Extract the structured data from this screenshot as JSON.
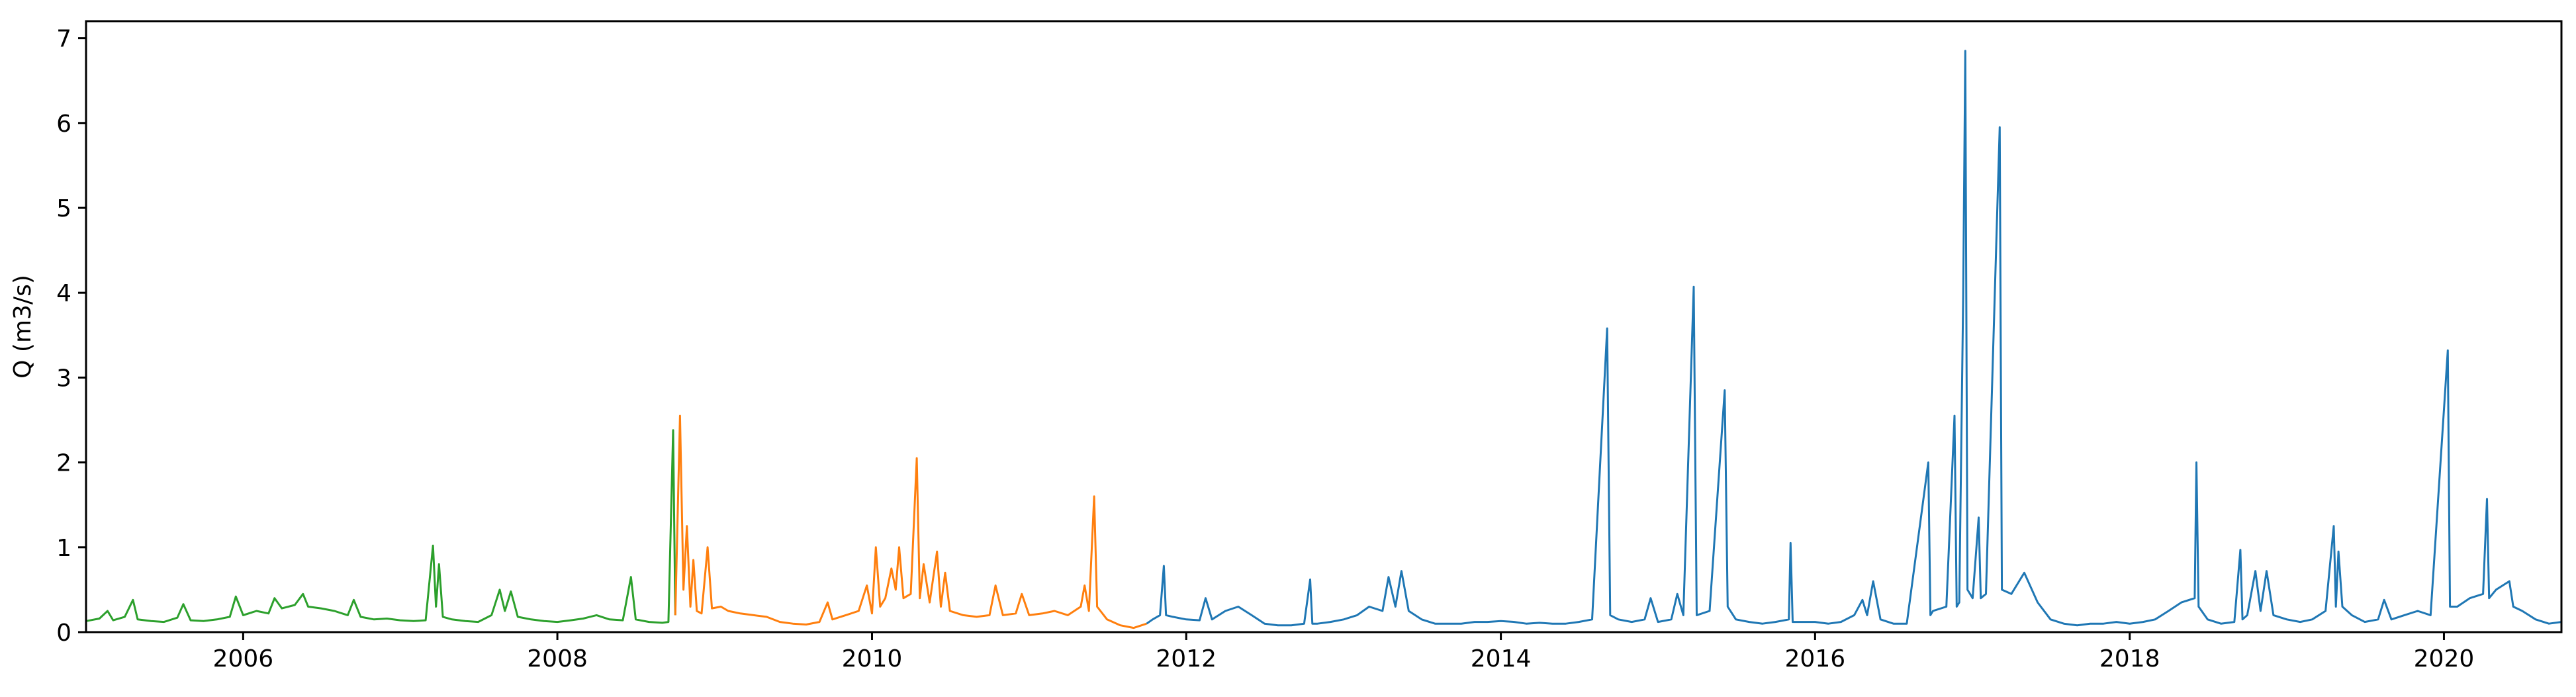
{
  "chart_data": {
    "type": "line",
    "title": "",
    "xlabel": "",
    "ylabel": "Q (m3/s)",
    "x_axis_kind": "date",
    "xlim": [
      "2005-01-01",
      "2020-09-30"
    ],
    "ylim": [
      0,
      7.2
    ],
    "x_ticks": [
      "2006-01-01",
      "2008-01-01",
      "2010-01-01",
      "2012-01-01",
      "2014-01-01",
      "2016-01-01",
      "2018-01-01",
      "2020-01-01"
    ],
    "x_tick_labels": [
      "2006",
      "2008",
      "2010",
      "2012",
      "2014",
      "2016",
      "2018",
      "2020"
    ],
    "y_ticks": [
      0,
      1,
      2,
      3,
      4,
      5,
      6,
      7
    ],
    "y_tick_labels": [
      "0",
      "1",
      "2",
      "3",
      "4",
      "5",
      "6",
      "7"
    ],
    "grid": false,
    "legend": "none",
    "series": [
      {
        "color": "#2ca02c",
        "points": [
          [
            "2005-01-01",
            0.13
          ],
          [
            "2005-02-01",
            0.16
          ],
          [
            "2005-02-20",
            0.25
          ],
          [
            "2005-03-05",
            0.14
          ],
          [
            "2005-04-01",
            0.18
          ],
          [
            "2005-04-20",
            0.38
          ],
          [
            "2005-05-01",
            0.15
          ],
          [
            "2005-06-01",
            0.13
          ],
          [
            "2005-07-01",
            0.12
          ],
          [
            "2005-08-01",
            0.17
          ],
          [
            "2005-08-15",
            0.33
          ],
          [
            "2005-09-01",
            0.14
          ],
          [
            "2005-10-01",
            0.13
          ],
          [
            "2005-11-01",
            0.15
          ],
          [
            "2005-12-01",
            0.18
          ],
          [
            "2005-12-15",
            0.42
          ],
          [
            "2006-01-01",
            0.2
          ],
          [
            "2006-02-01",
            0.25
          ],
          [
            "2006-03-01",
            0.22
          ],
          [
            "2006-03-15",
            0.4
          ],
          [
            "2006-04-01",
            0.28
          ],
          [
            "2006-05-01",
            0.32
          ],
          [
            "2006-05-20",
            0.45
          ],
          [
            "2006-06-01",
            0.3
          ],
          [
            "2006-07-01",
            0.28
          ],
          [
            "2006-08-01",
            0.25
          ],
          [
            "2006-09-01",
            0.2
          ],
          [
            "2006-09-15",
            0.38
          ],
          [
            "2006-10-01",
            0.18
          ],
          [
            "2006-11-01",
            0.15
          ],
          [
            "2006-12-01",
            0.16
          ],
          [
            "2007-01-01",
            0.14
          ],
          [
            "2007-02-01",
            0.13
          ],
          [
            "2007-03-01",
            0.14
          ],
          [
            "2007-03-18",
            1.02
          ],
          [
            "2007-03-25",
            0.3
          ],
          [
            "2007-04-01",
            0.8
          ],
          [
            "2007-04-10",
            0.18
          ],
          [
            "2007-05-01",
            0.15
          ],
          [
            "2007-06-01",
            0.13
          ],
          [
            "2007-07-01",
            0.12
          ],
          [
            "2007-08-01",
            0.2
          ],
          [
            "2007-08-20",
            0.5
          ],
          [
            "2007-09-01",
            0.25
          ],
          [
            "2007-09-15",
            0.48
          ],
          [
            "2007-10-01",
            0.18
          ],
          [
            "2007-11-01",
            0.15
          ],
          [
            "2007-12-01",
            0.13
          ],
          [
            "2008-01-01",
            0.12
          ],
          [
            "2008-02-01",
            0.14
          ],
          [
            "2008-03-01",
            0.16
          ],
          [
            "2008-04-01",
            0.2
          ],
          [
            "2008-05-01",
            0.15
          ],
          [
            "2008-06-01",
            0.14
          ],
          [
            "2008-06-20",
            0.65
          ],
          [
            "2008-07-01",
            0.15
          ],
          [
            "2008-08-01",
            0.12
          ],
          [
            "2008-09-01",
            0.11
          ],
          [
            "2008-09-15",
            0.12
          ],
          [
            "2008-09-26",
            2.38
          ],
          [
            "2008-10-01",
            0.2
          ]
        ]
      },
      {
        "color": "#ff7f0e",
        "points": [
          [
            "2008-10-01",
            0.2
          ],
          [
            "2008-10-12",
            2.55
          ],
          [
            "2008-10-20",
            0.5
          ],
          [
            "2008-10-28",
            1.25
          ],
          [
            "2008-11-05",
            0.3
          ],
          [
            "2008-11-12",
            0.85
          ],
          [
            "2008-11-20",
            0.25
          ],
          [
            "2008-12-01",
            0.22
          ],
          [
            "2008-12-15",
            1.0
          ],
          [
            "2008-12-25",
            0.28
          ],
          [
            "2009-01-15",
            0.3
          ],
          [
            "2009-02-01",
            0.25
          ],
          [
            "2009-03-01",
            0.22
          ],
          [
            "2009-04-01",
            0.2
          ],
          [
            "2009-05-01",
            0.18
          ],
          [
            "2009-06-01",
            0.12
          ],
          [
            "2009-07-01",
            0.1
          ],
          [
            "2009-08-01",
            0.09
          ],
          [
            "2009-09-01",
            0.12
          ],
          [
            "2009-09-20",
            0.35
          ],
          [
            "2009-10-01",
            0.15
          ],
          [
            "2009-11-01",
            0.2
          ],
          [
            "2009-12-01",
            0.25
          ],
          [
            "2009-12-20",
            0.55
          ],
          [
            "2010-01-01",
            0.22
          ],
          [
            "2010-01-10",
            1.0
          ],
          [
            "2010-01-20",
            0.3
          ],
          [
            "2010-02-01",
            0.4
          ],
          [
            "2010-02-15",
            0.75
          ],
          [
            "2010-02-25",
            0.5
          ],
          [
            "2010-03-05",
            1.0
          ],
          [
            "2010-03-15",
            0.4
          ],
          [
            "2010-04-01",
            0.45
          ],
          [
            "2010-04-15",
            2.05
          ],
          [
            "2010-04-22",
            0.4
          ],
          [
            "2010-05-01",
            0.8
          ],
          [
            "2010-05-15",
            0.35
          ],
          [
            "2010-06-01",
            0.95
          ],
          [
            "2010-06-10",
            0.3
          ],
          [
            "2010-06-20",
            0.7
          ],
          [
            "2010-07-01",
            0.25
          ],
          [
            "2010-08-01",
            0.2
          ],
          [
            "2010-09-01",
            0.18
          ],
          [
            "2010-10-01",
            0.2
          ],
          [
            "2010-10-15",
            0.55
          ],
          [
            "2010-11-01",
            0.2
          ],
          [
            "2010-12-01",
            0.22
          ],
          [
            "2010-12-15",
            0.45
          ],
          [
            "2011-01-01",
            0.2
          ],
          [
            "2011-02-01",
            0.22
          ],
          [
            "2011-03-01",
            0.25
          ],
          [
            "2011-04-01",
            0.2
          ],
          [
            "2011-05-01",
            0.3
          ],
          [
            "2011-05-10",
            0.55
          ],
          [
            "2011-05-20",
            0.25
          ],
          [
            "2011-06-01",
            1.6
          ],
          [
            "2011-06-08",
            0.3
          ],
          [
            "2011-07-01",
            0.15
          ],
          [
            "2011-08-01",
            0.08
          ],
          [
            "2011-09-01",
            0.05
          ],
          [
            "2011-10-01",
            0.1
          ]
        ]
      },
      {
        "color": "#1f77b4",
        "points": [
          [
            "2011-10-01",
            0.1
          ],
          [
            "2011-10-15",
            0.15
          ],
          [
            "2011-11-01",
            0.2
          ],
          [
            "2011-11-10",
            0.78
          ],
          [
            "2011-11-15",
            0.2
          ],
          [
            "2011-12-01",
            0.18
          ],
          [
            "2012-01-01",
            0.15
          ],
          [
            "2012-02-01",
            0.14
          ],
          [
            "2012-02-15",
            0.4
          ],
          [
            "2012-03-01",
            0.15
          ],
          [
            "2012-04-01",
            0.25
          ],
          [
            "2012-05-01",
            0.3
          ],
          [
            "2012-06-01",
            0.2
          ],
          [
            "2012-07-01",
            0.1
          ],
          [
            "2012-08-01",
            0.08
          ],
          [
            "2012-09-01",
            0.08
          ],
          [
            "2012-10-01",
            0.1
          ],
          [
            "2012-10-15",
            0.62
          ],
          [
            "2012-10-20",
            0.1
          ],
          [
            "2012-11-01",
            0.1
          ],
          [
            "2012-12-01",
            0.12
          ],
          [
            "2013-01-01",
            0.15
          ],
          [
            "2013-02-01",
            0.2
          ],
          [
            "2013-03-01",
            0.3
          ],
          [
            "2013-04-01",
            0.25
          ],
          [
            "2013-04-15",
            0.65
          ],
          [
            "2013-05-01",
            0.3
          ],
          [
            "2013-05-15",
            0.72
          ],
          [
            "2013-06-01",
            0.25
          ],
          [
            "2013-07-01",
            0.15
          ],
          [
            "2013-08-01",
            0.1
          ],
          [
            "2013-09-01",
            0.1
          ],
          [
            "2013-10-01",
            0.1
          ],
          [
            "2013-11-01",
            0.12
          ],
          [
            "2013-12-01",
            0.12
          ],
          [
            "2014-01-01",
            0.13
          ],
          [
            "2014-02-01",
            0.12
          ],
          [
            "2014-03-01",
            0.1
          ],
          [
            "2014-04-01",
            0.11
          ],
          [
            "2014-05-01",
            0.1
          ],
          [
            "2014-06-01",
            0.1
          ],
          [
            "2014-07-01",
            0.12
          ],
          [
            "2014-08-01",
            0.15
          ],
          [
            "2014-09-05",
            3.58
          ],
          [
            "2014-09-12",
            0.2
          ],
          [
            "2014-10-01",
            0.15
          ],
          [
            "2014-11-01",
            0.12
          ],
          [
            "2014-12-01",
            0.15
          ],
          [
            "2014-12-15",
            0.4
          ],
          [
            "2015-01-01",
            0.12
          ],
          [
            "2015-02-01",
            0.15
          ],
          [
            "2015-02-15",
            0.45
          ],
          [
            "2015-03-01",
            0.2
          ],
          [
            "2015-03-25",
            4.07
          ],
          [
            "2015-04-01",
            0.2
          ],
          [
            "2015-05-01",
            0.25
          ],
          [
            "2015-06-05",
            2.85
          ],
          [
            "2015-06-12",
            0.3
          ],
          [
            "2015-07-01",
            0.15
          ],
          [
            "2015-08-01",
            0.12
          ],
          [
            "2015-09-01",
            0.1
          ],
          [
            "2015-10-01",
            0.12
          ],
          [
            "2015-11-01",
            0.15
          ],
          [
            "2015-11-05",
            1.05
          ],
          [
            "2015-11-10",
            0.12
          ],
          [
            "2015-12-01",
            0.12
          ],
          [
            "2016-01-01",
            0.12
          ],
          [
            "2016-02-01",
            0.1
          ],
          [
            "2016-03-01",
            0.12
          ],
          [
            "2016-04-01",
            0.2
          ],
          [
            "2016-04-20",
            0.38
          ],
          [
            "2016-05-01",
            0.2
          ],
          [
            "2016-05-15",
            0.6
          ],
          [
            "2016-06-01",
            0.15
          ],
          [
            "2016-07-01",
            0.1
          ],
          [
            "2016-08-01",
            0.1
          ],
          [
            "2016-09-20",
            2.0
          ],
          [
            "2016-09-25",
            0.2
          ],
          [
            "2016-10-01",
            0.25
          ],
          [
            "2016-11-01",
            0.3
          ],
          [
            "2016-11-20",
            2.55
          ],
          [
            "2016-11-25",
            0.3
          ],
          [
            "2016-12-01",
            0.35
          ],
          [
            "2016-12-10",
            3.95
          ],
          [
            "2016-12-15",
            6.85
          ],
          [
            "2016-12-20",
            0.5
          ],
          [
            "2017-01-01",
            0.4
          ],
          [
            "2017-01-15",
            1.35
          ],
          [
            "2017-01-20",
            0.4
          ],
          [
            "2017-02-01",
            0.45
          ],
          [
            "2017-03-05",
            5.95
          ],
          [
            "2017-03-10",
            0.5
          ],
          [
            "2017-04-01",
            0.45
          ],
          [
            "2017-05-01",
            0.7
          ],
          [
            "2017-06-01",
            0.35
          ],
          [
            "2017-07-01",
            0.15
          ],
          [
            "2017-08-01",
            0.1
          ],
          [
            "2017-09-01",
            0.08
          ],
          [
            "2017-10-01",
            0.1
          ],
          [
            "2017-11-01",
            0.1
          ],
          [
            "2017-12-01",
            0.12
          ],
          [
            "2018-01-01",
            0.1
          ],
          [
            "2018-02-01",
            0.12
          ],
          [
            "2018-03-01",
            0.15
          ],
          [
            "2018-04-01",
            0.25
          ],
          [
            "2018-05-01",
            0.35
          ],
          [
            "2018-06-01",
            0.4
          ],
          [
            "2018-06-05",
            2.0
          ],
          [
            "2018-06-10",
            0.3
          ],
          [
            "2018-07-01",
            0.15
          ],
          [
            "2018-08-01",
            0.1
          ],
          [
            "2018-09-01",
            0.12
          ],
          [
            "2018-09-15",
            0.97
          ],
          [
            "2018-09-20",
            0.15
          ],
          [
            "2018-10-01",
            0.2
          ],
          [
            "2018-10-20",
            0.72
          ],
          [
            "2018-11-01",
            0.25
          ],
          [
            "2018-11-15",
            0.72
          ],
          [
            "2018-12-01",
            0.2
          ],
          [
            "2019-01-01",
            0.15
          ],
          [
            "2019-02-01",
            0.12
          ],
          [
            "2019-03-01",
            0.15
          ],
          [
            "2019-04-01",
            0.25
          ],
          [
            "2019-04-20",
            1.25
          ],
          [
            "2019-04-25",
            0.3
          ],
          [
            "2019-05-01",
            0.95
          ],
          [
            "2019-05-10",
            0.3
          ],
          [
            "2019-06-01",
            0.2
          ],
          [
            "2019-07-01",
            0.12
          ],
          [
            "2019-08-01",
            0.15
          ],
          [
            "2019-08-15",
            0.38
          ],
          [
            "2019-09-01",
            0.15
          ],
          [
            "2019-10-01",
            0.2
          ],
          [
            "2019-11-01",
            0.25
          ],
          [
            "2019-12-01",
            0.2
          ],
          [
            "2020-01-10",
            3.32
          ],
          [
            "2020-01-15",
            0.3
          ],
          [
            "2020-02-01",
            0.3
          ],
          [
            "2020-03-01",
            0.4
          ],
          [
            "2020-04-01",
            0.45
          ],
          [
            "2020-04-10",
            1.57
          ],
          [
            "2020-04-15",
            0.4
          ],
          [
            "2020-05-01",
            0.5
          ],
          [
            "2020-06-01",
            0.6
          ],
          [
            "2020-06-10",
            0.3
          ],
          [
            "2020-07-01",
            0.25
          ],
          [
            "2020-08-01",
            0.15
          ],
          [
            "2020-09-01",
            0.1
          ],
          [
            "2020-09-30",
            0.12
          ]
        ]
      }
    ]
  }
}
